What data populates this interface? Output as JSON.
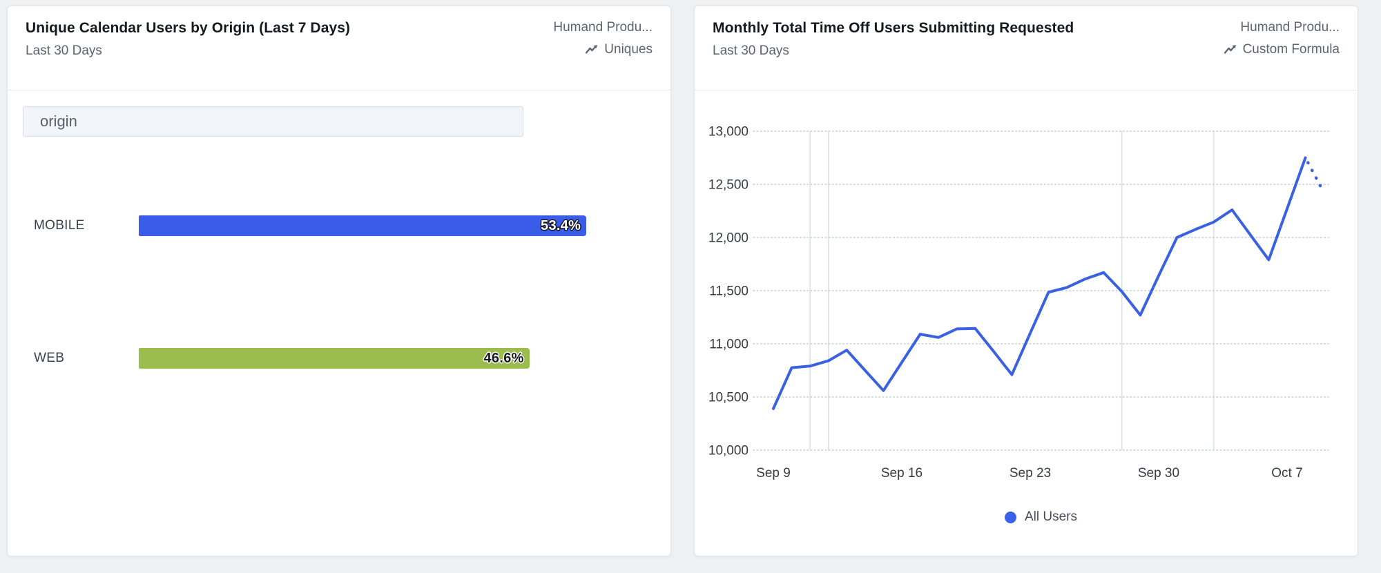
{
  "page": {
    "background": "#eef0f2"
  },
  "left_card": {
    "title": "Unique Calendar Users by Origin (Last 7 Days)",
    "date_range": "Last 30 Days",
    "source": "Humand Produ...",
    "metric_type": "Uniques",
    "metric_icon": "line-chart-icon",
    "filter_input": {
      "value": "origin"
    },
    "chart_data": {
      "type": "bar",
      "orientation": "horizontal",
      "title": "Unique Calendar Users by Origin (Last 7 Days)",
      "categories": [
        "MOBILE",
        "WEB"
      ],
      "values": [
        53.4,
        46.6
      ],
      "value_labels": [
        "53.4%",
        "46.6%"
      ],
      "unit": "%",
      "xlim": [
        0,
        100
      ],
      "bar_colors": [
        "#3B5CE8",
        "#9BBD4D"
      ],
      "value_text_colors": [
        "#ffffff",
        "#17191c"
      ],
      "value_outline_colors": [
        "#17191c",
        "#ffffff"
      ],
      "grid": false
    }
  },
  "right_card": {
    "title": "Monthly Total Time Off Users Submitting Requested",
    "date_range": "Last 30 Days",
    "source": "Humand Produ...",
    "metric_type": "Custom Formula",
    "metric_icon": "line-chart-icon",
    "chart_data": {
      "type": "line",
      "title": "Monthly Total Time Off Users Submitting Requested",
      "x": [
        "Sep 9",
        "Sep 10",
        "Sep 11",
        "Sep 12",
        "Sep 13",
        "Sep 14",
        "Sep 15",
        "Sep 16",
        "Sep 17",
        "Sep 18",
        "Sep 19",
        "Sep 20",
        "Sep 21",
        "Sep 22",
        "Sep 23",
        "Sep 24",
        "Sep 25",
        "Sep 26",
        "Sep 27",
        "Sep 28",
        "Sep 29",
        "Sep 30",
        "Oct 1",
        "Oct 2",
        "Oct 3",
        "Oct 4",
        "Oct 5",
        "Oct 6",
        "Oct 7",
        "Oct 8",
        "Oct 9"
      ],
      "series": [
        {
          "name": "All Users",
          "color": "#3A61E0",
          "values": [
            10390,
            10775,
            10790,
            10840,
            10940,
            10750,
            10560,
            10825,
            11090,
            11060,
            11140,
            11145,
            10930,
            10710,
            11100,
            11485,
            11530,
            11610,
            11670,
            11490,
            11270,
            11640,
            12000,
            12075,
            12145,
            12260,
            12025,
            11790,
            12270,
            12750,
            12425
          ],
          "dotted_tail_points": 1
        }
      ],
      "x_tick_labels": [
        "Sep 9",
        "Sep 16",
        "Sep 23",
        "Sep 30",
        "Oct 7"
      ],
      "x_tick_indices": [
        0,
        7,
        14,
        21,
        28
      ],
      "y_tick_values": [
        10000,
        10500,
        11000,
        11500,
        12000,
        12500,
        13000
      ],
      "y_tick_labels": [
        "10,000",
        "10,500",
        "11,000",
        "11,500",
        "12,000",
        "12,500",
        "13,000"
      ],
      "ylim": [
        10000,
        13000
      ],
      "grid": "horizontal-dotted",
      "gridline_color": "#c7cdd3",
      "annotation_line_dates": [
        "Sep 11",
        "Sep 12",
        "Sep 28",
        "Oct 3"
      ],
      "annotation_line_indices": [
        2,
        3,
        19,
        24
      ],
      "annotation_line_color": "#d9e1e6",
      "legend": {
        "position": "bottom-center",
        "entries": [
          "All Users"
        ],
        "dot_color": "#3761E8"
      }
    }
  }
}
